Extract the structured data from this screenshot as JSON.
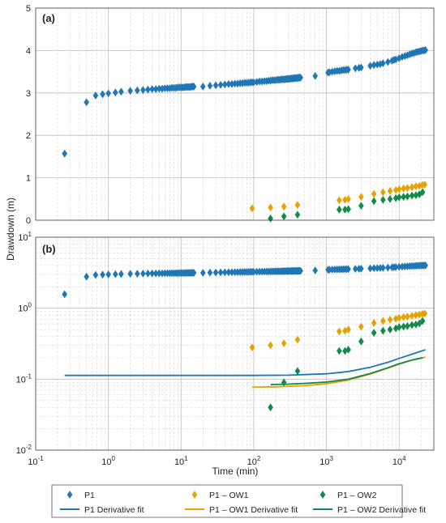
{
  "chart_data": [
    {
      "panel_label": "(a)",
      "type": "scatter",
      "xscale": "log",
      "yscale": "linear",
      "xlim": [
        0.1,
        30000
      ],
      "ylim": [
        0,
        5
      ],
      "yticks": [
        0,
        1,
        2,
        3,
        4,
        5
      ],
      "ytick_labels": [
        "0",
        "1",
        "2",
        "3",
        "4",
        "5"
      ],
      "grid": true,
      "series": [
        {
          "name": "P1",
          "color": "#1f77b4",
          "marker": "diamond",
          "x": [
            0.25,
            0.5,
            0.667,
            0.833,
            1,
            1.25,
            1.5,
            2,
            2.5,
            3,
            3.5,
            4,
            4.5,
            5,
            5.5,
            6,
            6.5,
            7,
            7.5,
            8,
            8.5,
            9,
            9.5,
            10,
            10.5,
            11,
            11.5,
            12,
            12.5,
            13,
            13.5,
            14,
            14.5,
            15,
            20,
            25,
            30,
            35,
            40,
            45,
            50,
            55,
            60,
            65,
            70,
            75,
            80,
            85,
            90,
            95,
            100,
            110,
            120,
            130,
            140,
            150,
            160,
            170,
            180,
            190,
            200,
            210,
            220,
            230,
            240,
            250,
            260,
            270,
            280,
            290,
            300,
            310,
            320,
            330,
            340,
            350,
            360,
            370,
            380,
            390,
            400,
            410,
            420,
            430,
            440,
            700,
            1050,
            1100,
            1200,
            1300,
            1400,
            1500,
            1600,
            1700,
            1800,
            1900,
            2000,
            2500,
            2800,
            3000,
            4000,
            4500,
            5000,
            5500,
            6000,
            7000,
            8000,
            8500,
            9000,
            10000,
            11000,
            12000,
            13000,
            14000,
            15000,
            16000,
            17000,
            18000,
            19000,
            20000,
            21000,
            22000,
            23000
          ],
          "y": [
            1.57,
            2.78,
            2.94,
            2.97,
            2.99,
            3.01,
            3.03,
            3.05,
            3.06,
            3.07,
            3.08,
            3.09,
            3.09,
            3.1,
            3.1,
            3.11,
            3.11,
            3.11,
            3.12,
            3.12,
            3.12,
            3.13,
            3.13,
            3.13,
            3.13,
            3.13,
            3.14,
            3.14,
            3.14,
            3.14,
            3.14,
            3.15,
            3.15,
            3.15,
            3.15,
            3.17,
            3.18,
            3.19,
            3.2,
            3.21,
            3.21,
            3.22,
            3.22,
            3.23,
            3.23,
            3.24,
            3.24,
            3.24,
            3.25,
            3.25,
            3.25,
            3.26,
            3.27,
            3.27,
            3.28,
            3.28,
            3.29,
            3.29,
            3.3,
            3.3,
            3.3,
            3.31,
            3.31,
            3.31,
            3.32,
            3.32,
            3.32,
            3.32,
            3.33,
            3.33,
            3.33,
            3.33,
            3.34,
            3.34,
            3.34,
            3.34,
            3.35,
            3.35,
            3.35,
            3.35,
            3.35,
            3.36,
            3.36,
            3.36,
            3.36,
            3.4,
            3.48,
            3.49,
            3.5,
            3.51,
            3.52,
            3.52,
            3.53,
            3.54,
            3.54,
            3.55,
            3.55,
            3.58,
            3.59,
            3.6,
            3.64,
            3.66,
            3.67,
            3.68,
            3.7,
            3.73,
            3.76,
            3.78,
            3.79,
            3.82,
            3.85,
            3.87,
            3.89,
            3.91,
            3.93,
            3.94,
            3.96,
            3.97,
            3.98,
            3.99,
            4.0,
            4.0,
            4.01
          ]
        },
        {
          "name": "P1 – OW1",
          "color": "#e6a300",
          "marker": "diamond",
          "x": [
            95,
            170,
            260,
            400,
            1500,
            1800,
            2000,
            3000,
            4500,
            6000,
            7500,
            9000,
            10000,
            11500,
            13000,
            15000,
            17000,
            19000,
            21000,
            22500
          ],
          "y": [
            0.28,
            0.3,
            0.32,
            0.36,
            0.47,
            0.48,
            0.5,
            0.55,
            0.62,
            0.66,
            0.69,
            0.71,
            0.73,
            0.75,
            0.76,
            0.78,
            0.8,
            0.81,
            0.83,
            0.84
          ]
        },
        {
          "name": "P1 – OW2",
          "color": "#118a4a",
          "marker": "diamond",
          "x": [
            170,
            260,
            400,
            1500,
            1800,
            2000,
            3000,
            4500,
            6000,
            7500,
            9000,
            10000,
            11500,
            13000,
            15000,
            17000,
            19000,
            21000
          ],
          "y": [
            0.04,
            0.09,
            0.13,
            0.25,
            0.25,
            0.26,
            0.34,
            0.45,
            0.48,
            0.5,
            0.52,
            0.54,
            0.55,
            0.56,
            0.58,
            0.59,
            0.61,
            0.66
          ]
        }
      ]
    },
    {
      "panel_label": "(b)",
      "type": "scatter",
      "xscale": "log",
      "yscale": "log",
      "xlim": [
        0.1,
        30000
      ],
      "ylim": [
        0.01,
        10
      ],
      "yticks": [
        0.01,
        0.1,
        1,
        10
      ],
      "ytick_labels": [
        [
          "10",
          "-2"
        ],
        [
          "10",
          "-1"
        ],
        [
          "10",
          "0"
        ],
        [
          "10",
          "1"
        ]
      ],
      "grid": true,
      "series_ref": "same point data as panel (a)",
      "fits": [
        {
          "name": "P1 Derivative fit",
          "color": "#1f77b4",
          "x": [
            0.25,
            1,
            10,
            100,
            300,
            1000,
            2000,
            4000,
            7000,
            10000,
            15000,
            23000
          ],
          "y": [
            0.113,
            0.113,
            0.113,
            0.113,
            0.114,
            0.119,
            0.128,
            0.147,
            0.173,
            0.196,
            0.225,
            0.26
          ]
        },
        {
          "name": "P1 – OW1 Derivative fit",
          "color": "#e6a300",
          "x": [
            95,
            200,
            500,
            1000,
            2000,
            4000,
            7000,
            10000,
            15000,
            23000
          ],
          "y": [
            0.077,
            0.078,
            0.081,
            0.086,
            0.097,
            0.118,
            0.143,
            0.163,
            0.186,
            0.204
          ]
        },
        {
          "name": "P1 – OW2 Derivative fit",
          "color": "#118a4a",
          "x": [
            170,
            300,
            500,
            1000,
            2000,
            4000,
            7000,
            10000,
            15000,
            21000
          ],
          "y": [
            0.084,
            0.085,
            0.087,
            0.091,
            0.1,
            0.12,
            0.145,
            0.165,
            0.186,
            0.2
          ]
        }
      ]
    }
  ],
  "axes_common": {
    "xlabel": "Time (min)",
    "ylabel": "Drawdown (m)",
    "xticks": [
      0.1,
      1,
      10,
      100,
      1000,
      10000
    ],
    "xtick_labels": [
      [
        "10",
        "-1"
      ],
      [
        "10",
        "0"
      ],
      [
        "10",
        "1"
      ],
      [
        "10",
        "2"
      ],
      [
        "10",
        "3"
      ],
      [
        "10",
        "4"
      ]
    ]
  },
  "legend": {
    "placement": "bottom-center",
    "entries": [
      {
        "label": "P1",
        "kind": "marker",
        "color": "#1f77b4"
      },
      {
        "label": "P1 – OW1",
        "kind": "marker",
        "color": "#e6a300"
      },
      {
        "label": "P1 – OW2",
        "kind": "marker",
        "color": "#118a4a"
      },
      {
        "label": "P1 Derivative fit",
        "kind": "line",
        "color": "#1f77b4"
      },
      {
        "label": "P1 – OW1 Derivative fit",
        "kind": "line",
        "color": "#e6a300"
      },
      {
        "label": "P1 – OW2 Derivative fit",
        "kind": "line",
        "color": "#118a4a"
      }
    ]
  }
}
